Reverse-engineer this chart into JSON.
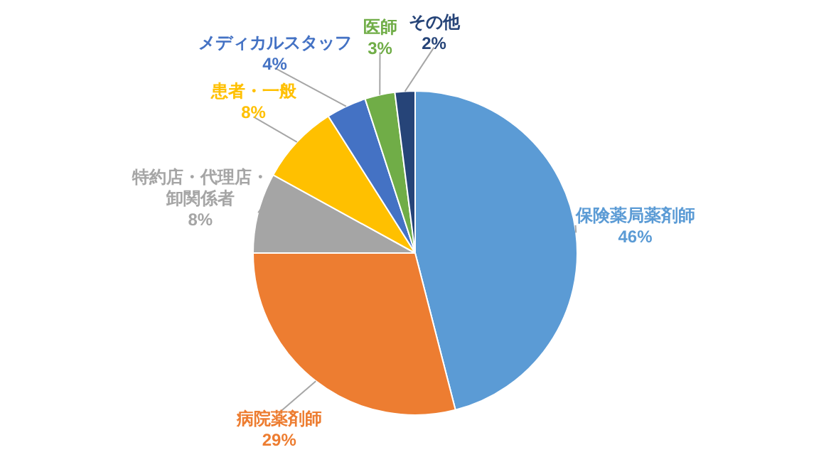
{
  "chart_data": {
    "type": "pie",
    "categories": [
      "保険薬局薬剤師",
      "病院薬剤師",
      "特約店・代理店・卸関係者",
      "患者・一般",
      "メディカルスタッフ",
      "医師",
      "その他"
    ],
    "values": [
      46,
      29,
      8,
      8,
      4,
      3,
      2
    ],
    "value_labels": [
      "46%",
      "29%",
      "8%",
      "8%",
      "4%",
      "3%",
      "2%"
    ],
    "colors": [
      "#5b9bd5",
      "#ed7d31",
      "#a5a5a5",
      "#ffc000",
      "#4472c4",
      "#70ad47",
      "#264478"
    ]
  }
}
